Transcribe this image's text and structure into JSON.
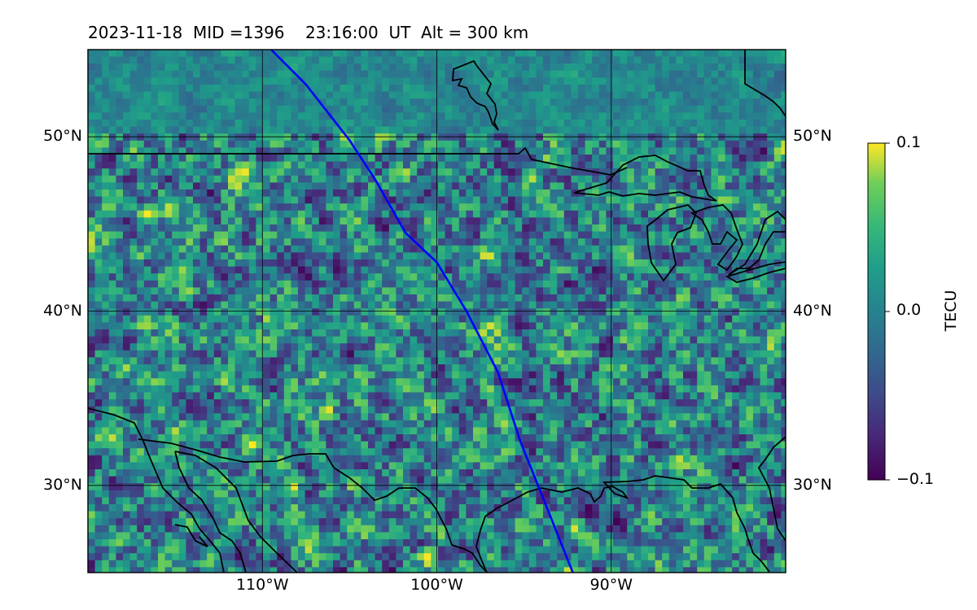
{
  "title": "2023-11-18  MID =1396    23:16:00  UT  Alt = 300 km",
  "map": {
    "lon_range": [
      -120,
      -80
    ],
    "lat_range": [
      25,
      55
    ],
    "lat_tick_values": [
      30,
      40,
      50
    ],
    "lat_tick_labels": [
      "30°N",
      "40°N",
      "50°N"
    ],
    "lon_tick_values": [
      -110,
      -100,
      -90
    ],
    "lon_tick_labels": [
      "110°W",
      "100°W",
      "90°W"
    ],
    "gridlines": true,
    "coastlines": true,
    "colormap": "viridis",
    "track_color": "#0000ff"
  },
  "colorbar": {
    "label": "TECU",
    "vmin": -0.1,
    "vmax": 0.1,
    "tick_labels": [
      "0.1",
      "0.0",
      "−0.1"
    ]
  },
  "chart_data": {
    "type": "heatmap",
    "title": "2023-11-18  MID =1396    23:16:00  UT  Alt = 300 km",
    "variable": "TECU",
    "value_range": [
      -0.1,
      0.1
    ],
    "colormap": "viridis",
    "overlay_track": {
      "name": "",
      "points": [
        [
          -109.5,
          55
        ],
        [
          -107.5,
          53
        ],
        [
          -105,
          49.8
        ],
        [
          -103.5,
          47.5
        ],
        [
          -101.8,
          44.5
        ],
        [
          -100,
          42.8
        ],
        [
          -98.3,
          40
        ],
        [
          -96.5,
          36.5
        ],
        [
          -95.2,
          32.5
        ],
        [
          -94,
          29.5
        ],
        [
          -92.2,
          25
        ]
      ]
    }
  }
}
